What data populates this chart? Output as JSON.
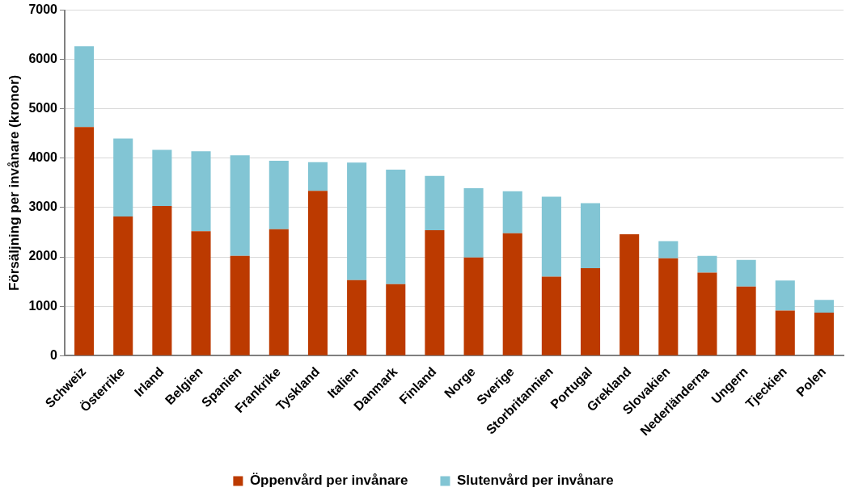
{
  "chart_data": {
    "type": "bar",
    "stacked": true,
    "ylabel": "Försäljning per invånare (kronor)",
    "categories": [
      "Schweiz",
      "Österrike",
      "Irland",
      "Belgien",
      "Spanien",
      "Frankrike",
      "Tyskland",
      "Italien",
      "Danmark",
      "Finland",
      "Norge",
      "Sverige",
      "Storbritannien",
      "Portugal",
      "Grekland",
      "Slovakien",
      "Nederländerna",
      "Ungern",
      "Tjeckien",
      "Polen"
    ],
    "series": [
      {
        "name": "Öppenvård per invånare",
        "color": "#bc3a00",
        "values": [
          4630,
          2820,
          3030,
          2520,
          2020,
          2560,
          3340,
          1530,
          1450,
          2540,
          1990,
          2480,
          1600,
          1770,
          2460,
          1970,
          1680,
          1400,
          910,
          870
        ]
      },
      {
        "name": "Slutenvård per invånare",
        "color": "#82c5d4",
        "values": [
          1640,
          1580,
          1140,
          1620,
          2040,
          1390,
          580,
          2380,
          2320,
          1100,
          1400,
          850,
          1620,
          1320,
          0,
          350,
          340,
          540,
          610,
          260
        ]
      }
    ],
    "ylim": [
      0,
      7000
    ],
    "yticks": [
      0,
      1000,
      2000,
      3000,
      4000,
      5000,
      6000,
      7000
    ],
    "grid": "y",
    "legend": "bottom"
  }
}
